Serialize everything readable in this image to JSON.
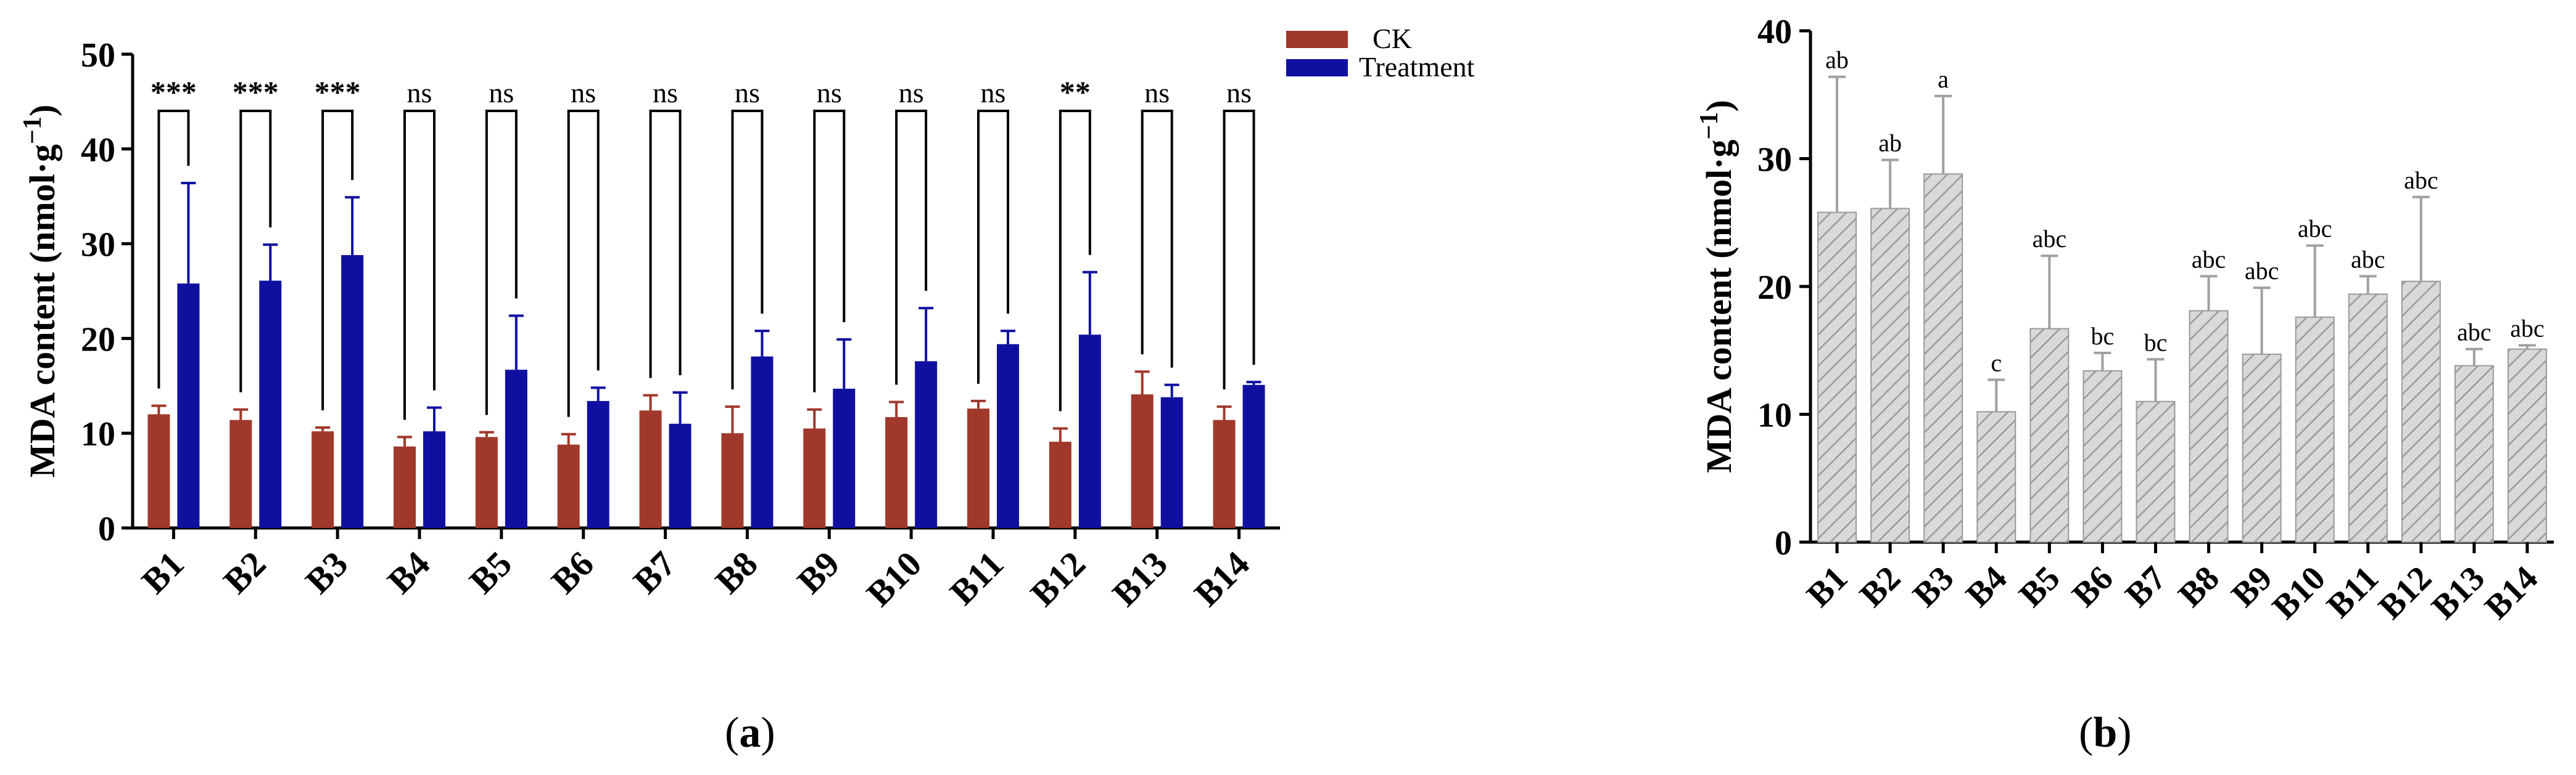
{
  "chart_data": [
    {
      "type": "bar",
      "panel_label": "a",
      "ylabel": "MDA content (nmol·g",
      "ylabel_sup": "−1",
      "ylabel_close": ")",
      "ylim": [
        0,
        50
      ],
      "yticks": [
        0,
        10,
        20,
        30,
        40,
        50
      ],
      "categories": [
        "B1",
        "B2",
        "B3",
        "B4",
        "B5",
        "B6",
        "B7",
        "B8",
        "B9",
        "B10",
        "B11",
        "B12",
        "B13",
        "B14"
      ],
      "series": [
        {
          "name": "CK",
          "color": "#a0392b",
          "values": [
            12.0,
            11.4,
            10.2,
            8.6,
            9.6,
            8.8,
            12.4,
            10.0,
            10.5,
            11.7,
            12.6,
            9.1,
            14.1,
            11.4
          ],
          "errors": [
            0.9,
            1.1,
            0.4,
            1.0,
            0.5,
            1.1,
            1.6,
            2.8,
            2.0,
            1.6,
            0.8,
            1.4,
            2.4,
            1.4
          ]
        },
        {
          "name": "Treatment",
          "color": "#1010a0",
          "values": [
            25.8,
            26.1,
            28.8,
            10.2,
            16.7,
            13.4,
            11.0,
            18.1,
            14.7,
            17.6,
            19.4,
            20.4,
            13.8,
            15.1
          ],
          "errors": [
            10.6,
            3.8,
            6.1,
            2.5,
            5.7,
            1.4,
            3.3,
            2.7,
            5.2,
            5.6,
            1.4,
            6.6,
            1.3,
            0.3
          ]
        }
      ],
      "significance": [
        "***",
        "***",
        "***",
        "ns",
        "ns",
        "ns",
        "ns",
        "ns",
        "ns",
        "ns",
        "ns",
        "**",
        "ns",
        "ns"
      ],
      "legend_position": "top-right"
    },
    {
      "type": "bar",
      "panel_label": "b",
      "ylabel": "MDA content (nmol·g",
      "ylabel_sup": "−1",
      "ylabel_close": ")",
      "ylim": [
        0,
        40
      ],
      "yticks": [
        0,
        10,
        20,
        30,
        40
      ],
      "categories": [
        "B1",
        "B2",
        "B3",
        "B4",
        "B5",
        "B6",
        "B7",
        "B8",
        "B9",
        "B10",
        "B11",
        "B12",
        "B13",
        "B14"
      ],
      "values": [
        25.8,
        26.1,
        28.8,
        10.2,
        16.7,
        13.4,
        11.0,
        18.1,
        14.7,
        17.6,
        19.4,
        20.4,
        13.8,
        15.1
      ],
      "errors": [
        10.6,
        3.8,
        6.1,
        2.5,
        5.7,
        1.4,
        3.3,
        2.7,
        5.2,
        5.6,
        1.4,
        6.6,
        1.3,
        0.3
      ],
      "letters": [
        "ab",
        "ab",
        "a",
        "c",
        "abc",
        "bc",
        "bc",
        "abc",
        "abc",
        "abc",
        "abc",
        "abc",
        "abc",
        "abc"
      ],
      "bar_fill": "#d9d9d9",
      "hatch_color": "#9a9a9a",
      "error_color": "#a0a0a0"
    }
  ]
}
